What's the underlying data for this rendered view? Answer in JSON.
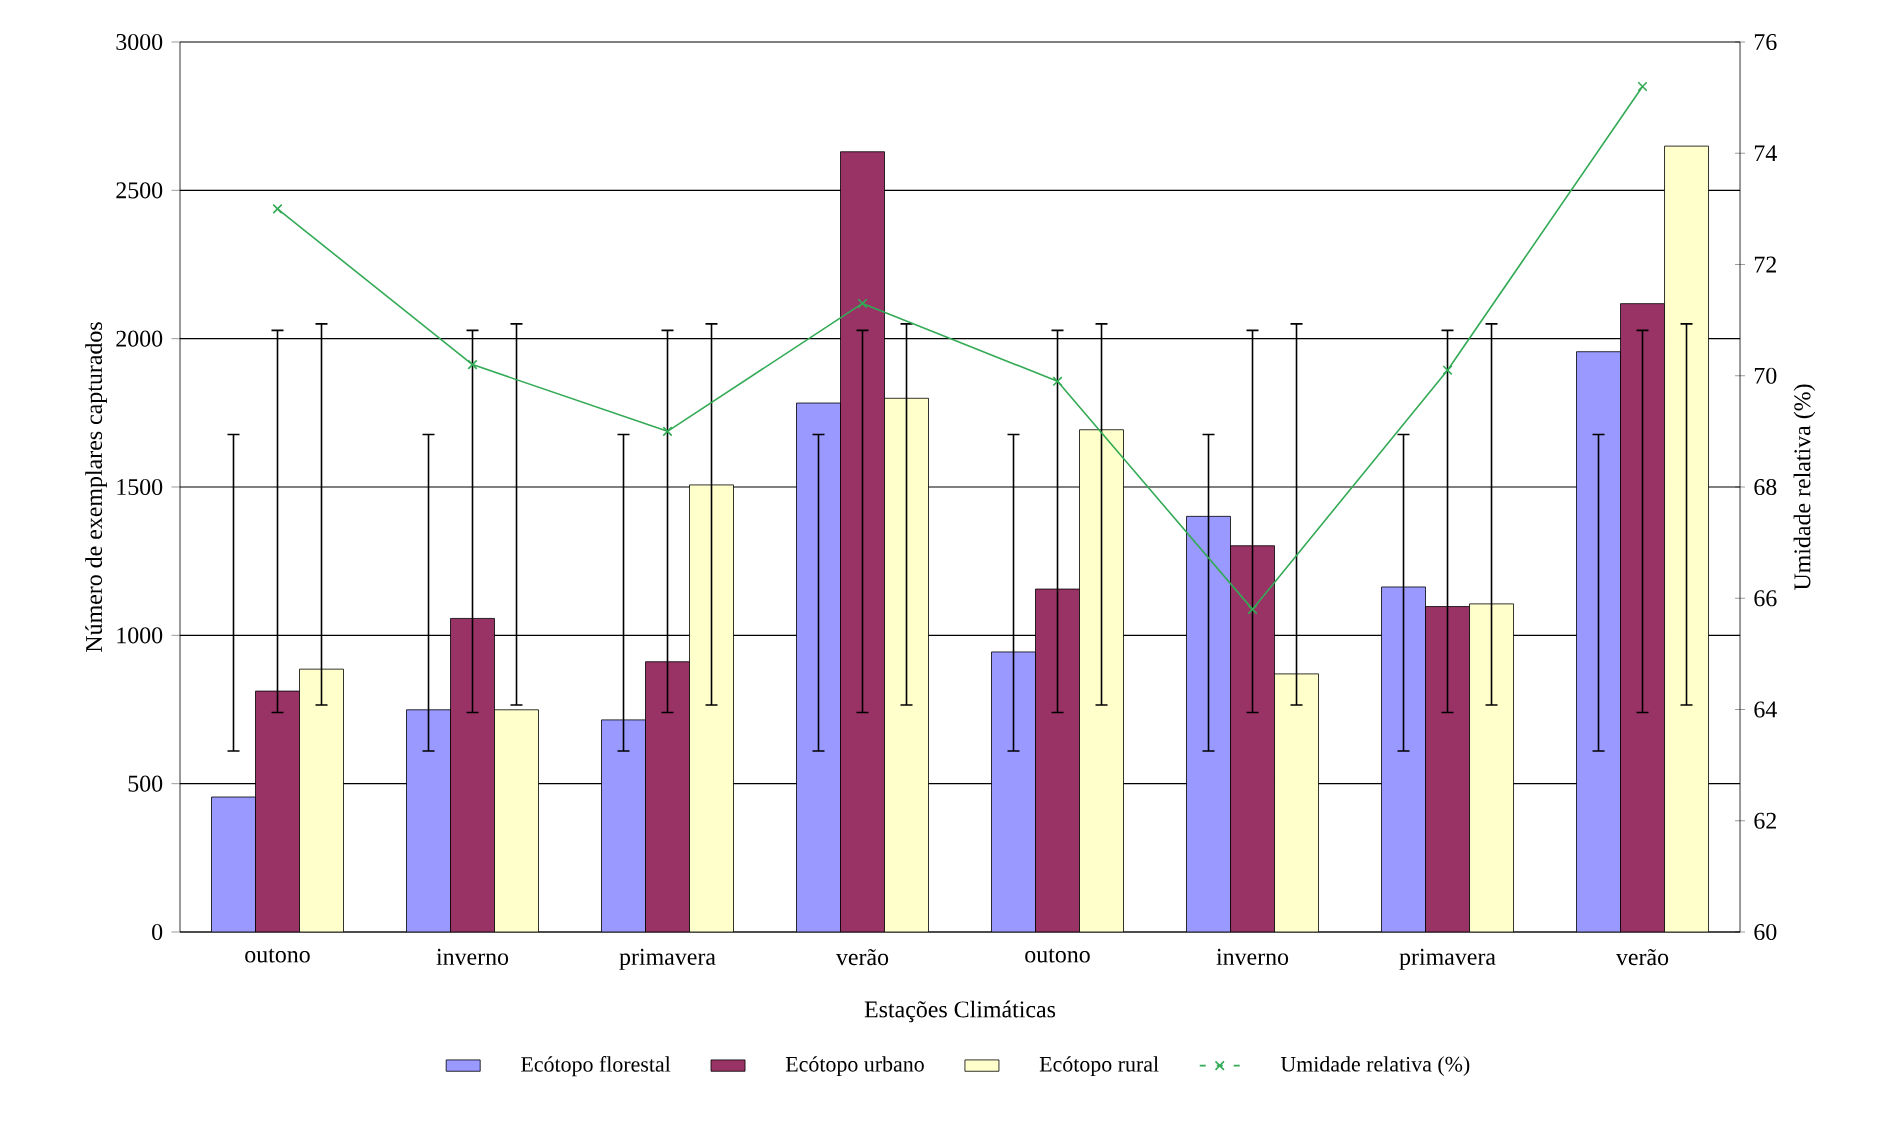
{
  "chart_data": {
    "type": "bar",
    "xlabel": "Estações Climáticas",
    "ylabel": "Número de exemplares capturados",
    "y2label": "Umidade relativa (%)",
    "categories": [
      "outono",
      "inverno",
      "primavera",
      "verão",
      "outono",
      "inverno",
      "primavera",
      "verão"
    ],
    "series": [
      {
        "name": "Ecótopo florestal",
        "color": "#9999ff",
        "values": [
          455,
          749,
          715,
          1783,
          944,
          1401,
          1163,
          1956
        ],
        "errors": [
          [
            610,
            1677
          ],
          [
            610,
            1677
          ],
          [
            610,
            1677
          ],
          [
            610,
            1677
          ],
          [
            610,
            1677
          ],
          [
            610,
            1677
          ],
          [
            610,
            1677
          ],
          [
            610,
            1677
          ]
        ]
      },
      {
        "name": "Ecótopo urbano",
        "color": "#993366",
        "values": [
          812,
          1057,
          911,
          2630,
          1156,
          1302,
          1097,
          2118
        ],
        "errors": [
          [
            740,
            2028
          ],
          [
            740,
            2028
          ],
          [
            740,
            2028
          ],
          [
            740,
            2028
          ],
          [
            740,
            2028
          ],
          [
            740,
            2028
          ],
          [
            740,
            2028
          ],
          [
            740,
            2028
          ]
        ]
      },
      {
        "name": "Ecótopo rural",
        "color": "#ffffcc",
        "values": [
          886,
          749,
          1507,
          1799,
          1693,
          870,
          1106,
          2649
        ],
        "errors": [
          [
            765,
            2050
          ],
          [
            765,
            2050
          ],
          [
            765,
            2050
          ],
          [
            765,
            2050
          ],
          [
            765,
            2050
          ],
          [
            765,
            2050
          ],
          [
            765,
            2050
          ],
          [
            765,
            2050
          ]
        ]
      },
      {
        "name": "Umidade relativa (%)",
        "type": "line",
        "axis": "y2",
        "color": "#33aa55",
        "marker": "cross",
        "values": [
          73.0,
          70.2,
          69.0,
          71.3,
          69.9,
          65.8,
          70.1,
          75.2
        ]
      }
    ],
    "ylim": [
      0,
      3000
    ],
    "yticks": [
      0,
      500,
      1000,
      1500,
      2000,
      2500,
      3000
    ],
    "y2lim": [
      60,
      76
    ],
    "y2ticks": [
      60,
      62,
      64,
      66,
      68,
      70,
      72,
      74,
      76
    ],
    "grid": "y",
    "legend": "bottom"
  }
}
